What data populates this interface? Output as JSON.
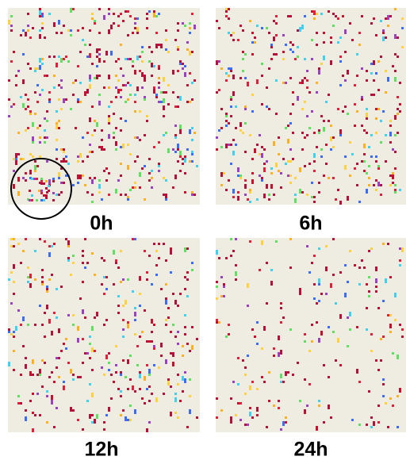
{
  "panels": [
    {
      "label": "0h"
    },
    {
      "label": "6h"
    },
    {
      "label": "12h"
    },
    {
      "label": "24h"
    }
  ]
}
